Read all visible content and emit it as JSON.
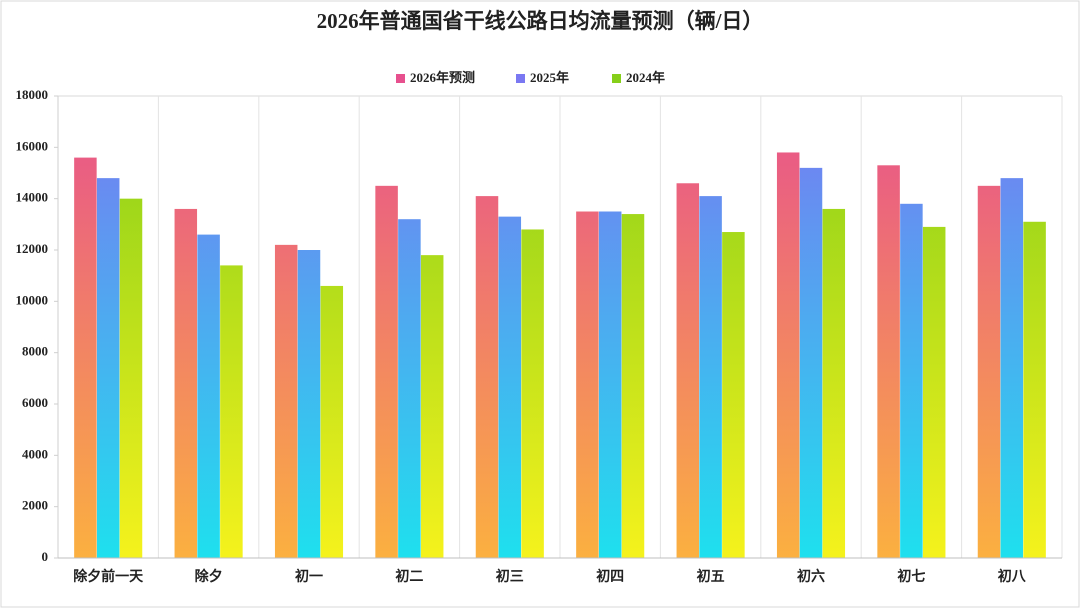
{
  "chart_data": {
    "type": "bar",
    "title": "2026年普通国省干线公路日均流量预测（辆/日）",
    "categories": [
      "除夕前一天",
      "除夕",
      "初一",
      "初二",
      "初三",
      "初四",
      "初五",
      "初六",
      "初七",
      "初八"
    ],
    "series": [
      {
        "name": "2026年预测",
        "color": "#e7508e",
        "gradient": [
          "#e7508e",
          "#fbb040"
        ],
        "values": [
          15600,
          13600,
          12200,
          14500,
          14100,
          13500,
          14600,
          15800,
          15300,
          14500
        ]
      },
      {
        "name": "2025年",
        "color": "#7a78f2",
        "gradient": [
          "#7a78f2",
          "#1ee0ee"
        ],
        "values": [
          14800,
          12600,
          12000,
          13200,
          13300,
          13500,
          14100,
          15200,
          13800,
          14800
        ]
      },
      {
        "name": "2024年",
        "color": "#86cf1a",
        "gradient": [
          "#86cf1a",
          "#f5f21c"
        ],
        "values": [
          14000,
          11400,
          10600,
          11800,
          12800,
          13400,
          12700,
          13600,
          12900,
          13100
        ]
      }
    ],
    "ylim": [
      0,
      18000
    ],
    "yticks": [
      0,
      2000,
      4000,
      6000,
      8000,
      10000,
      12000,
      14000,
      16000,
      18000
    ],
    "legend": "top"
  }
}
